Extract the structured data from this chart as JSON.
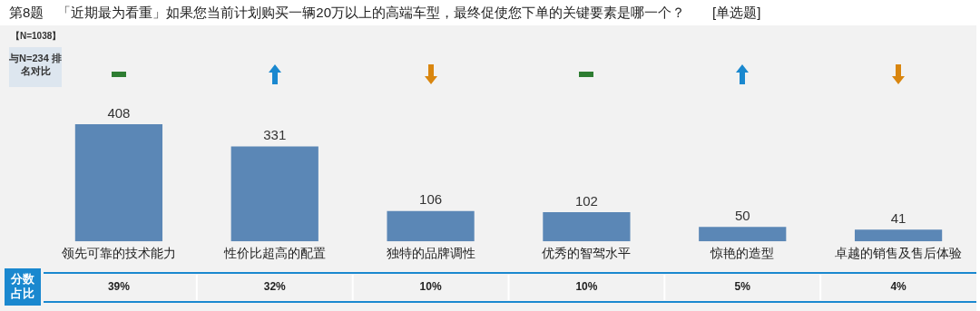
{
  "chart_data": {
    "type": "bar",
    "title": "第8题　「近期最为看重」如果您当前计划购买一辆20万以上的高端车型，最终促使您下单的关键要素是哪一个？　　[单选题]",
    "categories": [
      "领先可靠的技术能力",
      "性价比超高的配置",
      "独特的品牌调性",
      "优秀的智驾水平",
      "惊艳的造型",
      "卓越的销售及售后体验"
    ],
    "values": [
      408,
      331,
      106,
      102,
      50,
      41
    ],
    "color": "#5b87b6",
    "data_labels": true,
    "grid": false,
    "legend": false,
    "annotations": [
      "【N=1038】",
      "与N=234 排名对比",
      "分数占比",
      "39%",
      "32%",
      "10%",
      "10%",
      "5%",
      "4%"
    ]
  }
}
